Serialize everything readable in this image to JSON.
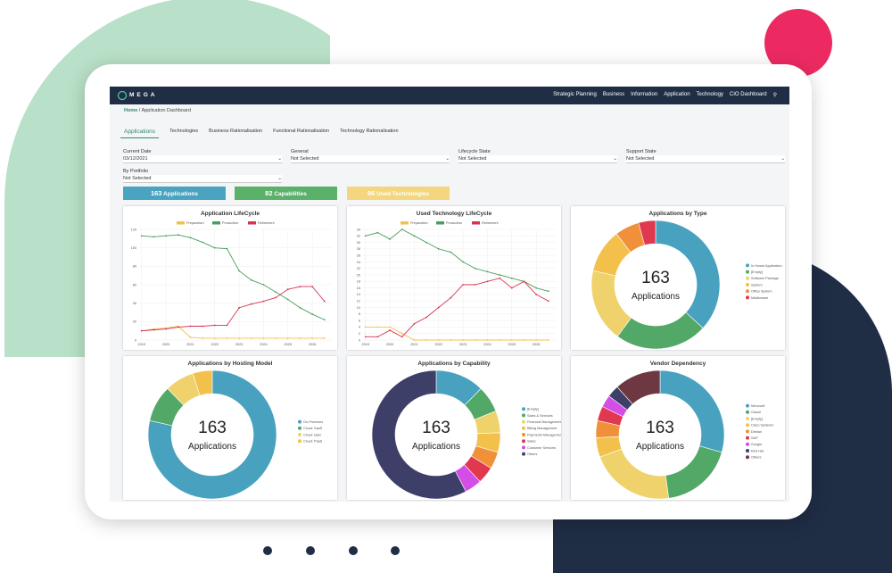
{
  "nav": {
    "brand": "MEGA",
    "items": [
      "Strategic Planning",
      "Business",
      "Information",
      "Application",
      "Technology",
      "CIO Dashboard"
    ]
  },
  "breadcrumb": [
    "Home",
    "Application Dashboard"
  ],
  "tabs": [
    "Applications",
    "Technologies",
    "Business Rationalisation",
    "Functional Rationalisation",
    "Technology Rationalisation"
  ],
  "filters": [
    {
      "label": "Current Date",
      "value": "03/12/2021"
    },
    {
      "label": "General",
      "value": "Not Selected"
    },
    {
      "label": "Lifecycle State",
      "value": "Not Selected"
    },
    {
      "label": "Support State",
      "value": "Not Selected"
    },
    {
      "label": "By Portfolio",
      "value": "Not Selected"
    }
  ],
  "kpis": [
    {
      "value": 163,
      "label": "Applications"
    },
    {
      "value": 82,
      "label": "Capabilities"
    },
    {
      "value": 96,
      "label": "Used Technologies"
    }
  ],
  "chart_data": [
    {
      "type": "line",
      "title": "Application LifeCycle",
      "x": [
        2019,
        2019.5,
        2020,
        2020.5,
        2021,
        2021.5,
        2022,
        2022.5,
        2023,
        2023.5,
        2024,
        2024.5,
        2025,
        2025.5,
        2026,
        2026.5
      ],
      "xlim": [
        2018.9,
        2026.8
      ],
      "xticks": [
        2019,
        2020,
        2021,
        2022,
        2023,
        2024,
        2025,
        2026
      ],
      "ylim": [
        0,
        120
      ],
      "yticks": [
        0,
        20,
        40,
        60,
        80,
        100,
        120
      ],
      "grid": true,
      "series": [
        {
          "name": "Preparation",
          "color": "#f2c14e",
          "values": [
            10,
            12,
            13,
            15,
            3,
            2,
            2,
            2,
            2,
            2,
            2,
            2,
            2,
            2,
            2,
            2
          ]
        },
        {
          "name": "Production",
          "color": "#4a9e5c",
          "values": [
            113,
            112,
            113,
            114,
            111,
            106,
            100,
            99,
            75,
            65,
            60,
            52,
            44,
            35,
            28,
            22
          ]
        },
        {
          "name": "Retirement",
          "color": "#d6334f",
          "values": [
            10,
            11,
            12,
            14,
            15,
            15,
            16,
            16,
            35,
            39,
            42,
            46,
            55,
            58,
            58,
            42
          ]
        }
      ]
    },
    {
      "type": "line",
      "title": "Used Technology LifeCycle",
      "x": [
        2019,
        2019.5,
        2020,
        2020.5,
        2021,
        2021.5,
        2022,
        2022.5,
        2023,
        2023.5,
        2024,
        2024.5,
        2025,
        2025.5,
        2026,
        2026.5
      ],
      "xlim": [
        2018.9,
        2026.8
      ],
      "xticks": [
        2019,
        2020,
        2021,
        2022,
        2023,
        2024,
        2025,
        2026
      ],
      "ylim": [
        0,
        34
      ],
      "yticks": [
        0,
        2,
        4,
        6,
        8,
        10,
        12,
        14,
        16,
        18,
        20,
        22,
        24,
        26,
        28,
        30,
        32,
        34
      ],
      "grid": true,
      "series": [
        {
          "name": "Preparation",
          "color": "#f2c14e",
          "values": [
            4,
            4,
            4,
            2,
            0,
            0,
            0,
            0,
            0,
            0,
            0,
            0,
            0,
            0,
            0,
            0
          ]
        },
        {
          "name": "Production",
          "color": "#4a9e5c",
          "values": [
            32,
            33,
            31,
            34,
            32,
            30,
            28,
            27,
            24,
            22,
            21,
            20,
            19,
            18,
            16,
            15
          ]
        },
        {
          "name": "Retirement",
          "color": "#d6334f",
          "values": [
            1,
            1,
            3,
            1,
            5,
            7,
            10,
            13,
            17,
            17,
            18,
            19,
            16,
            18,
            14,
            12
          ]
        }
      ]
    },
    {
      "type": "donut",
      "title": "Applications by Type",
      "center_value": 163,
      "center_label": "Applications",
      "labels": [
        "In House Application",
        "[Empty]",
        "Software Package",
        "System",
        "Office System",
        "Middleware"
      ],
      "values": [
        60,
        38,
        30,
        18,
        10,
        7
      ],
      "colors": [
        "#48a2bf",
        "#52a866",
        "#f0d26c",
        "#f3c04c",
        "#f0913a",
        "#e0384f"
      ]
    },
    {
      "type": "donut",
      "title": "Applications by Hosting Model",
      "center_value": 163,
      "center_label": "Applications",
      "labels": [
        "On-Premises",
        "Cloud: SaaS",
        "Cloud: IaaS",
        "Cloud: PaaS"
      ],
      "values": [
        128,
        15,
        12,
        8
      ],
      "colors": [
        "#48a2bf",
        "#52a866",
        "#f0d26c",
        "#f3c04c"
      ]
    },
    {
      "type": "donut",
      "title": "Applications by Capability",
      "center_value": 163,
      "center_label": "Applications",
      "labels": [
        "[Empty]",
        "Sales & Services",
        "Financial Management",
        "Billing Management",
        "Payments Management",
        "Sales",
        "Customer Services",
        "Others"
      ],
      "values": [
        20,
        11,
        9,
        8,
        7,
        7,
        7,
        94
      ],
      "colors": [
        "#48a2bf",
        "#52a866",
        "#f0d26c",
        "#f3c04c",
        "#f0913a",
        "#e0384f",
        "#d34ee6",
        "#3d3f69",
        "#6e3842"
      ]
    },
    {
      "type": "donut",
      "title": "Vendor Dependency",
      "center_value": 163,
      "center_label": "Applications",
      "labels": [
        "Microsoft",
        "Oracle",
        "[Empty]",
        "Cisco Systems",
        "Debian",
        "SAP",
        "Google",
        "Red Hat",
        "Others"
      ],
      "values": [
        48,
        30,
        35,
        8,
        7,
        6,
        5,
        5,
        19
      ],
      "colors": [
        "#48a2bf",
        "#52a866",
        "#f0d26c",
        "#f3c04c",
        "#f0913a",
        "#e0384f",
        "#d34ee6",
        "#3d3f69",
        "#6e3842"
      ]
    }
  ]
}
